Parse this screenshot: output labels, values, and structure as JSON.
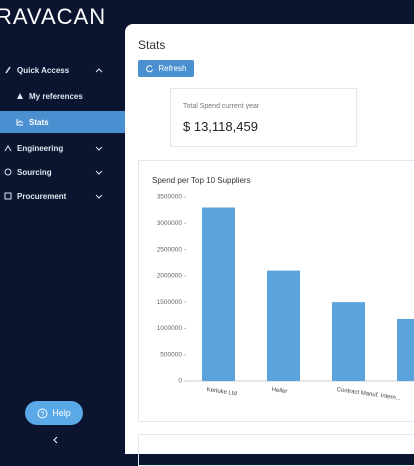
{
  "sidebar": {
    "logo": "RAVACAN",
    "menu": [
      {
        "label": "Quick Access"
      },
      {
        "label": "My references"
      },
      {
        "label": "Stats"
      },
      {
        "label": "Engineering"
      },
      {
        "label": "Sourcing"
      },
      {
        "label": "Procurement"
      }
    ],
    "help": "Help"
  },
  "page": {
    "title": "Stats",
    "refresh": "Refresh",
    "kpi": {
      "label": "Total Spend current year",
      "value": "$ 13,118,459"
    }
  },
  "chart_data": {
    "type": "bar",
    "title": "Spend per Top 10 Suppliers",
    "categories": [
      "Kerluke Ltd",
      "Heller",
      "Contract Manuf. Intern...",
      null
    ],
    "values": [
      3300000,
      2100000,
      1500000,
      1180000
    ],
    "color": "#5ba3dc",
    "ylim": [
      0,
      3500000
    ],
    "yticks": [
      0,
      500000,
      1000000,
      1500000,
      2000000,
      2500000,
      3000000,
      3500000
    ]
  }
}
